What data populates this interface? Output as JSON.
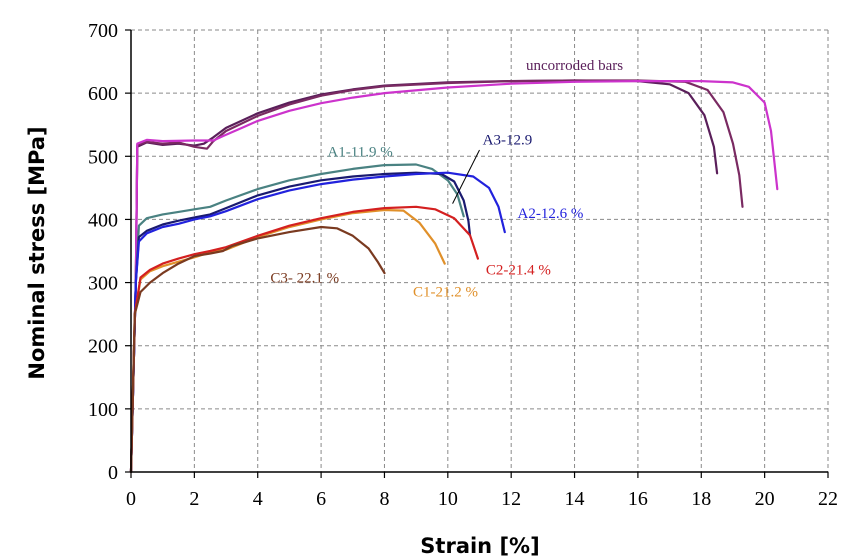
{
  "chart_data": {
    "type": "line",
    "title": "",
    "xlabel": "Strain [%]",
    "ylabel": "Nominal stress [MPa]",
    "xlim": [
      0,
      22
    ],
    "ylim": [
      0,
      700
    ],
    "xticks": [
      0,
      2,
      4,
      6,
      8,
      10,
      12,
      14,
      16,
      18,
      20,
      22
    ],
    "yticks": [
      0,
      100,
      200,
      300,
      400,
      500,
      600,
      700
    ],
    "grid": true,
    "legend": "none",
    "series": [
      {
        "name": "uncorroded bars",
        "color": "#5a1f5a",
        "points": [
          [
            0,
            0
          ],
          [
            0.15,
            300
          ],
          [
            0.2,
            515
          ],
          [
            0.5,
            522
          ],
          [
            1,
            518
          ],
          [
            1.5,
            520
          ],
          [
            2,
            517
          ],
          [
            2.3,
            520
          ],
          [
            2.6,
            530
          ],
          [
            3,
            545
          ],
          [
            4,
            568
          ],
          [
            5,
            585
          ],
          [
            6,
            598
          ],
          [
            7,
            606
          ],
          [
            8,
            612
          ],
          [
            10,
            617
          ],
          [
            12,
            619
          ],
          [
            14,
            620
          ],
          [
            16,
            619
          ],
          [
            17,
            614
          ],
          [
            17.6,
            600
          ],
          [
            18.1,
            565
          ],
          [
            18.4,
            515
          ],
          [
            18.5,
            473
          ]
        ]
      },
      {
        "name": "uncorroded bars",
        "color": "#7a2a62",
        "points": [
          [
            0,
            0
          ],
          [
            0.15,
            300
          ],
          [
            0.2,
            518
          ],
          [
            0.5,
            523
          ],
          [
            1,
            520
          ],
          [
            1.5,
            522
          ],
          [
            2,
            515
          ],
          [
            2.4,
            512
          ],
          [
            2.6,
            524
          ],
          [
            3,
            540
          ],
          [
            4,
            564
          ],
          [
            5,
            582
          ],
          [
            6,
            596
          ],
          [
            7,
            605
          ],
          [
            8,
            611
          ],
          [
            10,
            616
          ],
          [
            12,
            619
          ],
          [
            14,
            620
          ],
          [
            16,
            620
          ],
          [
            17.5,
            618
          ],
          [
            18.2,
            605
          ],
          [
            18.7,
            570
          ],
          [
            19.0,
            520
          ],
          [
            19.2,
            470
          ],
          [
            19.3,
            420
          ]
        ]
      },
      {
        "name": "uncorroded bars",
        "color": "#cc33cc",
        "points": [
          [
            0,
            0
          ],
          [
            0.15,
            300
          ],
          [
            0.2,
            520
          ],
          [
            0.5,
            526
          ],
          [
            1,
            524
          ],
          [
            2,
            525
          ],
          [
            2.6,
            525
          ],
          [
            2.9,
            532
          ],
          [
            3.5,
            545
          ],
          [
            4,
            556
          ],
          [
            5,
            572
          ],
          [
            6,
            584
          ],
          [
            7,
            593
          ],
          [
            8,
            600
          ],
          [
            10,
            609
          ],
          [
            12,
            615
          ],
          [
            14,
            618
          ],
          [
            16,
            619
          ],
          [
            18,
            619
          ],
          [
            19,
            617
          ],
          [
            19.5,
            610
          ],
          [
            20,
            585
          ],
          [
            20.2,
            540
          ],
          [
            20.3,
            495
          ],
          [
            20.4,
            448
          ]
        ]
      },
      {
        "name": "A1-11.9 %",
        "color": "#4a8282",
        "points": [
          [
            0,
            0
          ],
          [
            0.15,
            300
          ],
          [
            0.25,
            390
          ],
          [
            0.5,
            402
          ],
          [
            1,
            408
          ],
          [
            1.5,
            412
          ],
          [
            2,
            416
          ],
          [
            2.5,
            420
          ],
          [
            3,
            430
          ],
          [
            4,
            448
          ],
          [
            5,
            462
          ],
          [
            6,
            472
          ],
          [
            7,
            480
          ],
          [
            8,
            486
          ],
          [
            9,
            487
          ],
          [
            9.5,
            480
          ],
          [
            10,
            462
          ],
          [
            10.3,
            440
          ],
          [
            10.5,
            405
          ]
        ]
      },
      {
        "name": "A3-12.9",
        "color": "#1a1a70",
        "points": [
          [
            0,
            0
          ],
          [
            0.15,
            300
          ],
          [
            0.25,
            372
          ],
          [
            0.5,
            382
          ],
          [
            1,
            392
          ],
          [
            1.5,
            398
          ],
          [
            2,
            403
          ],
          [
            2.5,
            408
          ],
          [
            3,
            418
          ],
          [
            4,
            438
          ],
          [
            5,
            452
          ],
          [
            6,
            462
          ],
          [
            7,
            468
          ],
          [
            8,
            472
          ],
          [
            9,
            474
          ],
          [
            9.8,
            472
          ],
          [
            10.2,
            460
          ],
          [
            10.5,
            430
          ],
          [
            10.65,
            398
          ],
          [
            10.7,
            375
          ]
        ]
      },
      {
        "name": "A2-12.6 %",
        "color": "#2222dd",
        "points": [
          [
            0,
            0
          ],
          [
            0.15,
            300
          ],
          [
            0.25,
            365
          ],
          [
            0.5,
            378
          ],
          [
            1,
            388
          ],
          [
            1.5,
            393
          ],
          [
            2,
            400
          ],
          [
            2.5,
            405
          ],
          [
            3,
            413
          ],
          [
            4,
            432
          ],
          [
            5,
            446
          ],
          [
            6,
            456
          ],
          [
            7,
            463
          ],
          [
            8,
            468
          ],
          [
            9,
            472
          ],
          [
            10,
            474
          ],
          [
            10.8,
            468
          ],
          [
            11.3,
            450
          ],
          [
            11.6,
            420
          ],
          [
            11.8,
            380
          ]
        ]
      },
      {
        "name": "C1-21.2 %",
        "color": "#e0902a",
        "points": [
          [
            0,
            0
          ],
          [
            0.12,
            250
          ],
          [
            0.3,
            305
          ],
          [
            0.6,
            318
          ],
          [
            1,
            326
          ],
          [
            1.5,
            333
          ],
          [
            2,
            340
          ],
          [
            2.5,
            348
          ],
          [
            3,
            352
          ],
          [
            4,
            372
          ],
          [
            5,
            388
          ],
          [
            6,
            400
          ],
          [
            7,
            410
          ],
          [
            8,
            415
          ],
          [
            8.6,
            414
          ],
          [
            9.1,
            395
          ],
          [
            9.6,
            362
          ],
          [
            9.9,
            330
          ]
        ]
      },
      {
        "name": "C2-21.4 %",
        "color": "#d42020",
        "points": [
          [
            0,
            0
          ],
          [
            0.12,
            250
          ],
          [
            0.3,
            308
          ],
          [
            0.6,
            320
          ],
          [
            1,
            330
          ],
          [
            1.5,
            338
          ],
          [
            2,
            345
          ],
          [
            2.5,
            350
          ],
          [
            3,
            356
          ],
          [
            4,
            374
          ],
          [
            5,
            390
          ],
          [
            6,
            402
          ],
          [
            7,
            412
          ],
          [
            8,
            418
          ],
          [
            9,
            420
          ],
          [
            9.6,
            416
          ],
          [
            10.2,
            402
          ],
          [
            10.7,
            375
          ],
          [
            10.95,
            338
          ]
        ]
      },
      {
        "name": "C3- 22.1 %",
        "color": "#7a3a20",
        "points": [
          [
            0,
            0
          ],
          [
            0.12,
            250
          ],
          [
            0.3,
            285
          ],
          [
            0.6,
            300
          ],
          [
            1,
            315
          ],
          [
            1.5,
            330
          ],
          [
            2,
            342
          ],
          [
            2.5,
            346
          ],
          [
            2.9,
            350
          ],
          [
            3.2,
            358
          ],
          [
            4,
            370
          ],
          [
            5,
            380
          ],
          [
            6,
            388
          ],
          [
            6.5,
            386
          ],
          [
            7,
            374
          ],
          [
            7.5,
            354
          ],
          [
            7.8,
            332
          ],
          [
            8.0,
            315
          ]
        ]
      }
    ],
    "annotations": [
      {
        "text": "uncorroded bars",
        "color": "#5a1f5a"
      },
      {
        "text": "A1-11.9 %",
        "color": "#4a8282"
      },
      {
        "text": "A3-12.9",
        "color": "#1a1a70"
      },
      {
        "text": "A2-12.6 %",
        "color": "#2222dd"
      },
      {
        "text": "C1-21.2 %",
        "color": "#e0902a"
      },
      {
        "text": "C2-21.4 %",
        "color": "#d42020"
      },
      {
        "text": "C3- 22.1 %",
        "color": "#7a3a20"
      }
    ]
  }
}
